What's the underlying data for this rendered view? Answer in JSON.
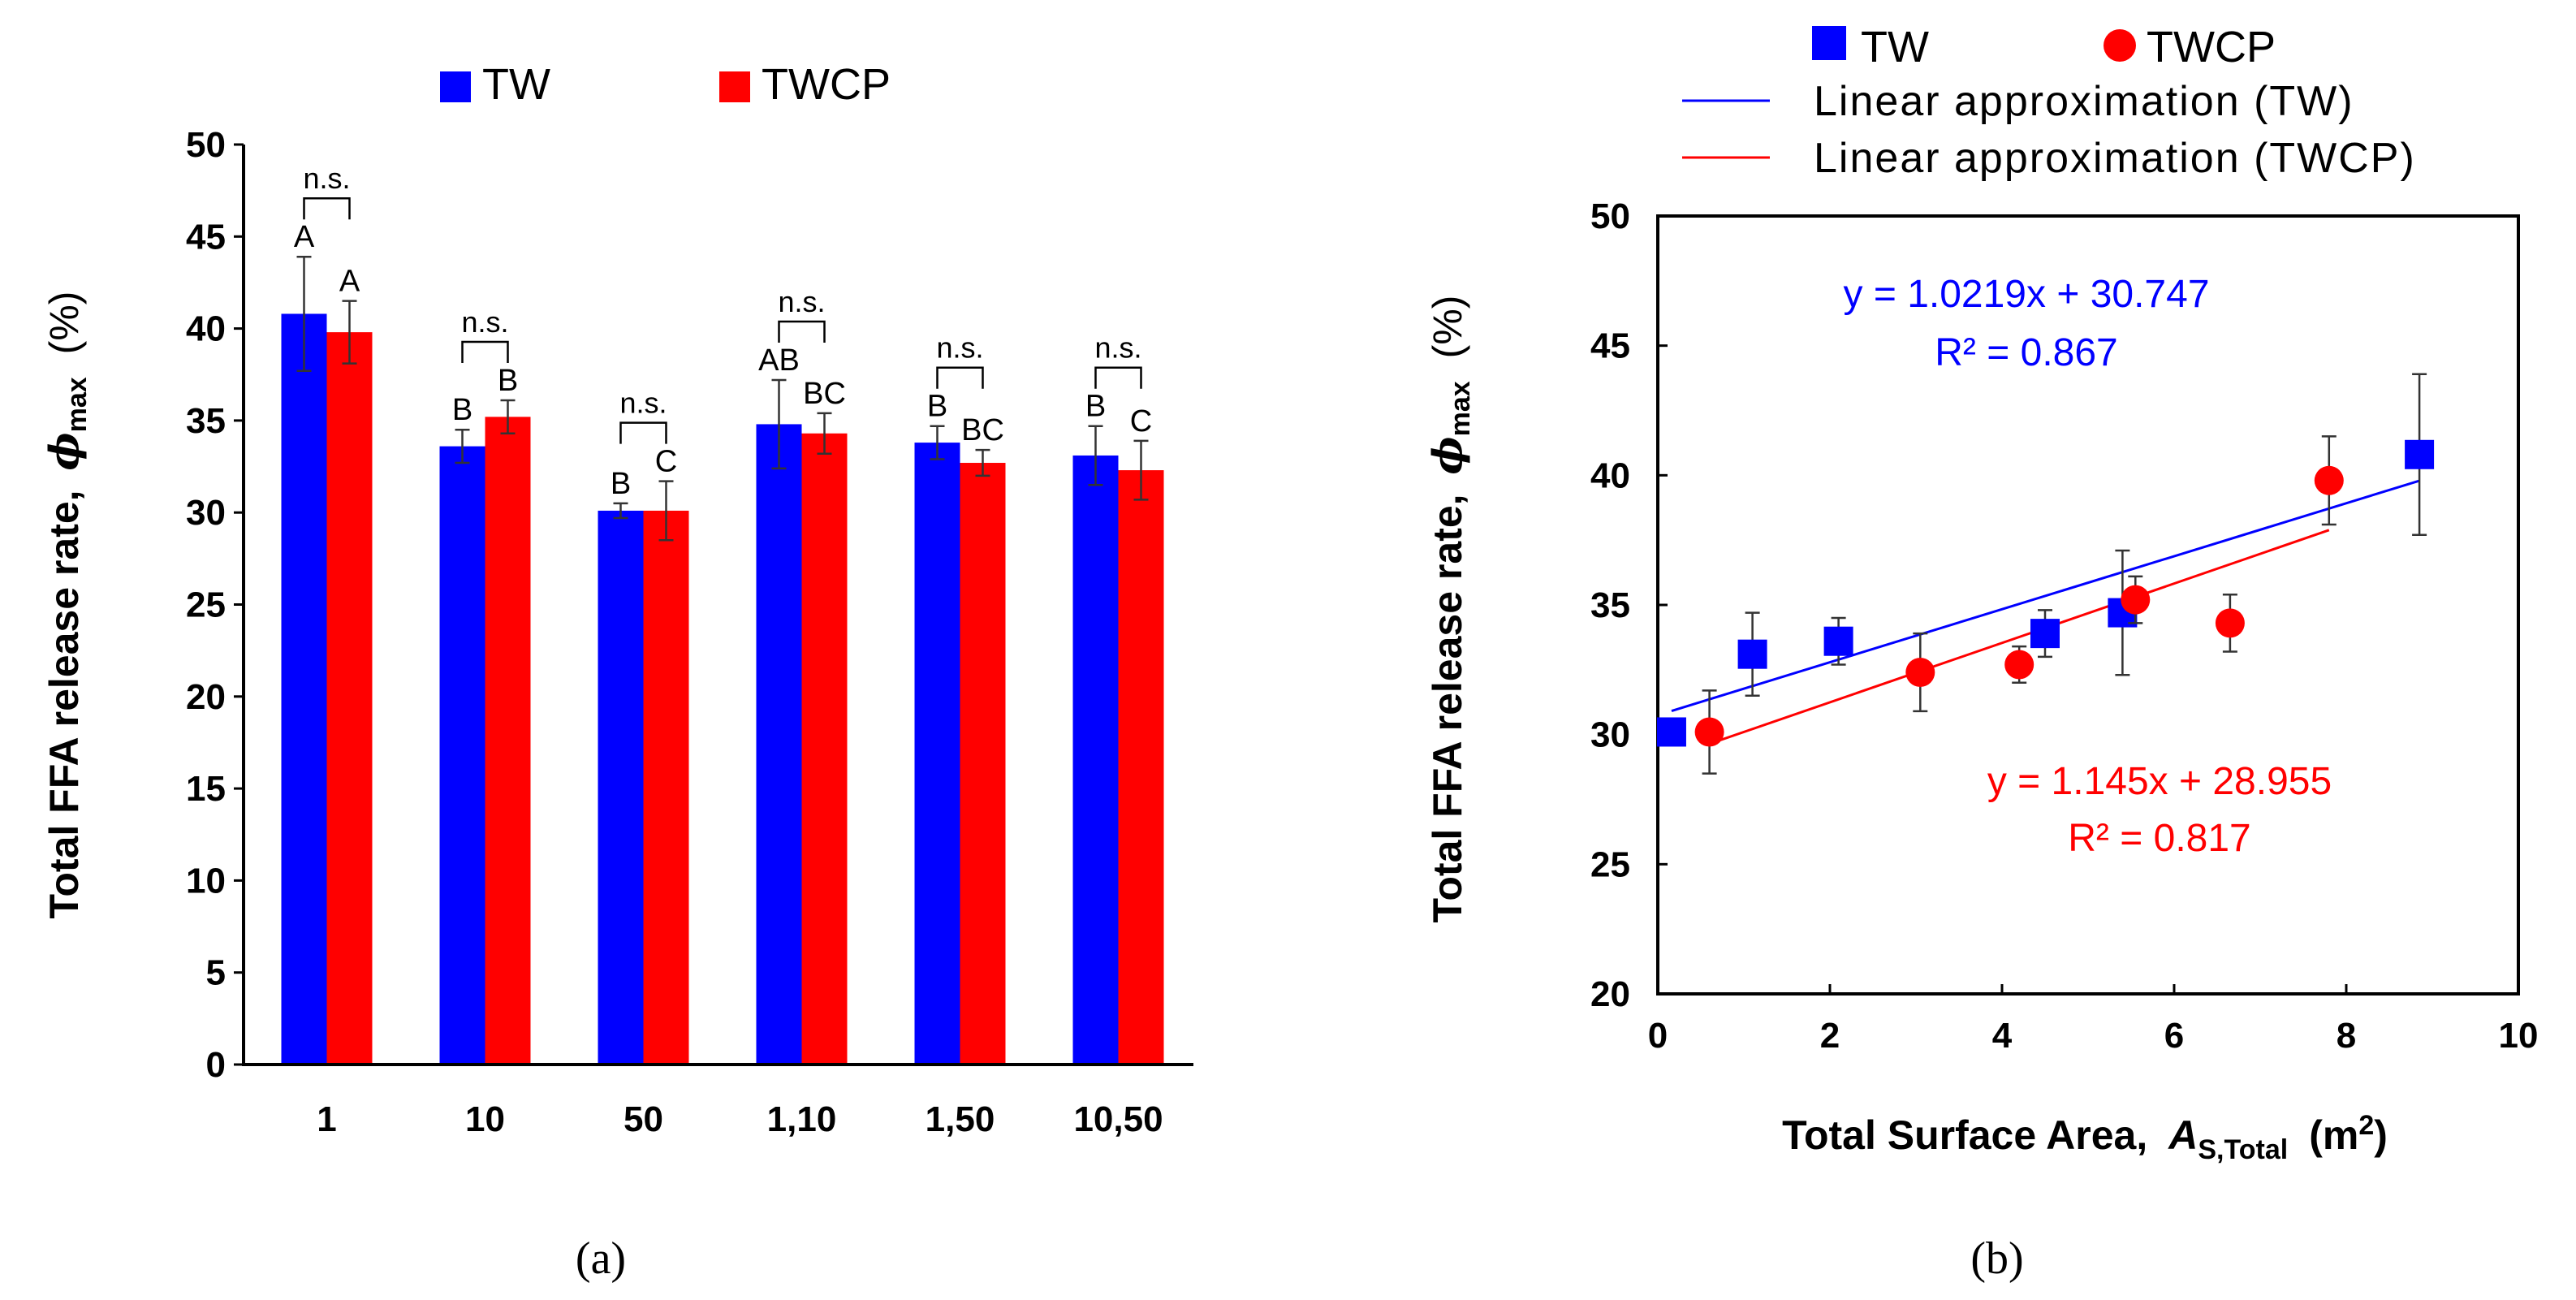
{
  "chart_data": [
    {
      "type": "bar",
      "panel_label": "(a)",
      "ylabel": "Total FFA release rate,",
      "ylabel_symbol": "ϕ",
      "ylabel_sub": "max",
      "ylabel_unit": "(%)",
      "ylim": [
        0,
        50
      ],
      "yticks": [
        "0",
        "5",
        "10",
        "15",
        "20",
        "25",
        "30",
        "35",
        "40",
        "45",
        "50"
      ],
      "categories": [
        "1",
        "10",
        "50",
        "1,10",
        "1,50",
        "10,50"
      ],
      "series": [
        {
          "name": "TW",
          "color": "#0000ff",
          "values": [
            40.8,
            33.6,
            30.1,
            34.8,
            33.8,
            33.1
          ],
          "errors": [
            3.1,
            0.9,
            0.4,
            2.4,
            0.9,
            1.6
          ],
          "letters": [
            "A",
            "B",
            "B",
            "AB",
            "B",
            "B"
          ]
        },
        {
          "name": "TWCP",
          "color": "#ff0000",
          "values": [
            39.8,
            35.2,
            30.1,
            34.3,
            32.7,
            32.3
          ],
          "errors": [
            1.7,
            0.9,
            1.6,
            1.1,
            0.7,
            1.6
          ],
          "letters": [
            "A",
            "B",
            "C",
            "BC",
            "BC",
            "C"
          ]
        }
      ],
      "significance": [
        "n.s.",
        "n.s.",
        "n.s.",
        "n.s.",
        "n.s.",
        "n.s."
      ]
    },
    {
      "type": "scatter",
      "panel_label": "(b)",
      "xlabel": "Total Surface Area,",
      "xlabel_symbol": "A",
      "xlabel_sub": "S,Total",
      "xlabel_unit": "(m",
      "xlabel_unit_sup": "2",
      "xlabel_unit_close": ")",
      "ylabel": "Total FFA release rate,",
      "ylabel_symbol": "ϕ",
      "ylabel_sub": "max",
      "ylabel_unit": "(%)",
      "xlim": [
        0,
        10
      ],
      "ylim": [
        20,
        50
      ],
      "xticks": [
        "0",
        "2",
        "4",
        "6",
        "8",
        "10"
      ],
      "yticks": [
        "20",
        "25",
        "30",
        "35",
        "40",
        "45",
        "50"
      ],
      "series": [
        {
          "name": "TW",
          "color": "#0000ff",
          "x": [
            0.16,
            1.1,
            2.1,
            4.5,
            5.4,
            8.85
          ],
          "y": [
            30.1,
            33.1,
            33.6,
            33.9,
            34.7,
            40.8
          ],
          "errors": [
            0.4,
            1.6,
            0.9,
            0.9,
            2.4,
            3.1
          ]
        },
        {
          "name": "TWCP",
          "color": "#ff0000",
          "x": [
            0.6,
            3.05,
            4.2,
            5.55,
            6.65,
            7.8
          ],
          "y": [
            30.1,
            32.4,
            32.7,
            35.2,
            34.3,
            39.8
          ],
          "errors": [
            1.6,
            1.5,
            0.7,
            0.9,
            1.1,
            1.7
          ]
        }
      ],
      "fits": [
        {
          "name": "Linear approximation (TW)",
          "color": "#0000ff",
          "slope": 1.0219,
          "intercept": 30.747,
          "x_range": [
            0.16,
            8.85
          ],
          "equation": "y = 1.0219x + 30.747",
          "r2": "R² = 0.867"
        },
        {
          "name": "Linear approximation (TWCP)",
          "color": "#ff0000",
          "slope": 1.145,
          "intercept": 28.955,
          "x_range": [
            0.6,
            7.8
          ],
          "equation": "y = 1.145x + 28.955",
          "r2": "R² = 0.817"
        }
      ]
    }
  ]
}
